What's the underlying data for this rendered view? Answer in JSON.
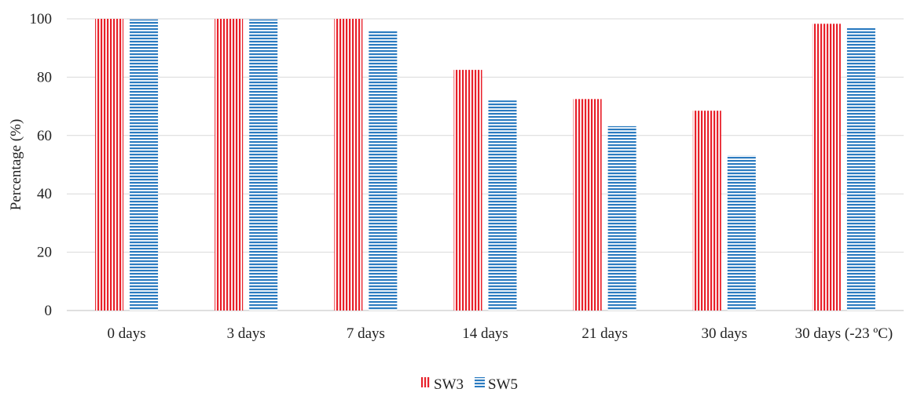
{
  "chart_data": {
    "type": "bar",
    "title": "",
    "xlabel": "",
    "ylabel": "Percentage (%)",
    "ylim": [
      0,
      100
    ],
    "yticks": [
      0,
      20,
      40,
      60,
      80,
      100
    ],
    "grid": true,
    "legend_position": "bottom",
    "categories": [
      "0 days",
      "3 days",
      "7 days",
      "14 days",
      "21 days",
      "30 days",
      "30 days (-23 ºC)"
    ],
    "series": [
      {
        "name": "SW3",
        "color": "#e8202a",
        "pattern": "vertical-stripes",
        "values": [
          100,
          100,
          100,
          82.5,
          72.5,
          68.5,
          98.3
        ]
      },
      {
        "name": "SW5",
        "color": "#2b7bc0",
        "pattern": "horizontal-stripes",
        "values": [
          99.8,
          99.8,
          96,
          72,
          63.2,
          53.2,
          96.8
        ]
      }
    ]
  }
}
